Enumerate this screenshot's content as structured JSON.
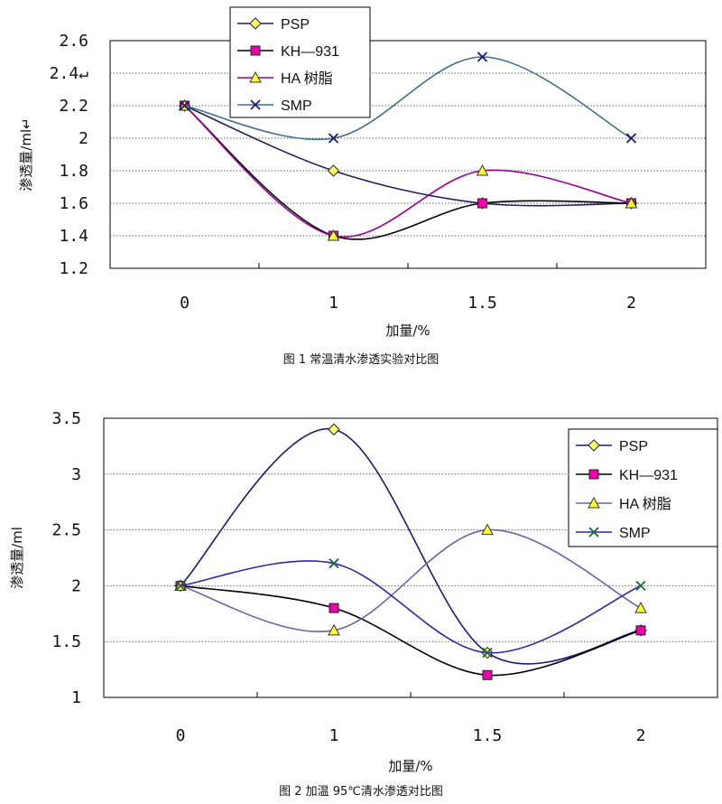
{
  "chart_data": [
    {
      "type": "line",
      "categories": [
        "0",
        "1",
        "1.5",
        "2"
      ],
      "ylabel": "渗透量/ml↵",
      "xlabel": "加量/%",
      "caption": "图 1  常温清水渗透实验对比图",
      "yticks": [
        "1.2",
        "1.4",
        "1.6",
        "1.8",
        "2",
        "2.2",
        "2.4↵",
        "2.6"
      ],
      "ylim": [
        1.2,
        2.6
      ],
      "grid": true,
      "legend_position": "top-center",
      "series": [
        {
          "name": "PSP",
          "values": [
            2.2,
            1.8,
            1.6,
            1.6
          ],
          "color": "#1f1f5c",
          "marker": "diamond",
          "marker_fill": "#ffff66"
        },
        {
          "name": "KH—931",
          "values": [
            2.2,
            1.4,
            1.6,
            1.6
          ],
          "color": "#000000",
          "marker": "square",
          "marker_fill": "#ee00aa"
        },
        {
          "name": "HA 树脂",
          "values": [
            2.2,
            1.4,
            1.8,
            1.6
          ],
          "color": "#990099",
          "marker": "triangle",
          "marker_fill": "#ffff33"
        },
        {
          "name": "SMP",
          "values": [
            2.2,
            2.0,
            2.5,
            2.0
          ],
          "color": "#3f6f8f",
          "marker": "x",
          "marker_fill": "#1a1a7a"
        }
      ]
    },
    {
      "type": "line",
      "categories": [
        "0",
        "1",
        "1.5",
        "2"
      ],
      "ylabel": "渗透量/ml",
      "xlabel": "加量/%",
      "caption": "图 2  加温 95℃清水渗透对比图",
      "yticks": [
        "1",
        "1.5",
        "2",
        "2.5",
        "3",
        "3.5"
      ],
      "ylim": [
        1,
        3.5
      ],
      "grid": true,
      "legend_position": "top-right",
      "series": [
        {
          "name": "PSP",
          "values": [
            2.0,
            3.4,
            1.4,
            1.6
          ],
          "color": "#1a1a7a",
          "marker": "diamond",
          "marker_fill": "#ffff66"
        },
        {
          "name": "KH—931",
          "values": [
            2.0,
            1.8,
            1.2,
            1.6
          ],
          "color": "#000000",
          "marker": "square",
          "marker_fill": "#ee00aa"
        },
        {
          "name": "HA 树脂",
          "values": [
            2.0,
            1.6,
            2.5,
            1.8
          ],
          "color": "#6666aa",
          "marker": "triangle",
          "marker_fill": "#ffff33"
        },
        {
          "name": "SMP",
          "values": [
            2.0,
            2.2,
            1.4,
            2.0
          ],
          "color": "#2a2ab0",
          "marker": "x",
          "marker_fill": "#1a6a3a"
        }
      ]
    }
  ]
}
